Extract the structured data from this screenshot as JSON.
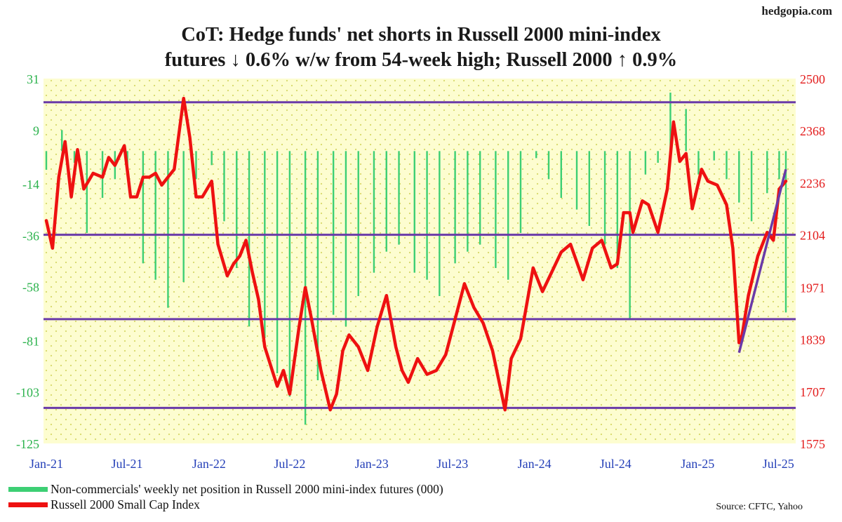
{
  "site": "hedgopia.com",
  "source": "Source: CFTC, Yahoo",
  "colors": {
    "bars": "#3dcf74",
    "line": "#ee1111",
    "trend": "#6a3aa8",
    "left_axis": "#2bb24c",
    "right_axis": "#e31b1b",
    "plot_bg": "#fdfdd0"
  },
  "chart_data": {
    "type": "bar+line",
    "title_lines": [
      "CoT: Hedge funds' net shorts in Russell 2000 mini-index",
      "futures ↓ 0.6% w/w from 54-week high; Russell 2000 ↑ 0.9%"
    ],
    "x_tick_labels": [
      "Jan-21",
      "Jul-21",
      "Jan-22",
      "Jul-22",
      "Jan-23",
      "Jul-23",
      "Jan-24",
      "Jul-24",
      "Jan-25",
      "Jul-25"
    ],
    "y_left": {
      "ticks": [
        31,
        9,
        -14,
        -36,
        -58,
        -81,
        -103,
        -125
      ],
      "range": [
        -125,
        31
      ]
    },
    "y_right": {
      "ticks": [
        2500,
        2368,
        2236,
        2104,
        1971,
        1839,
        1707,
        1575
      ],
      "range": [
        1575,
        2500
      ]
    },
    "horizontal_lines_right_axis": [
      2440,
      2104,
      1890,
      1665
    ],
    "trendline": {
      "from": [
        "2025-04-04",
        1805
      ],
      "to": [
        "2025-07-18",
        2270
      ]
    },
    "series": [
      {
        "name": "Non-commercials' weekly net position in Russell 2000 mini-index futures (000)",
        "type": "bar",
        "axis": "left",
        "x": [
          "2021-01-01",
          "2021-02-05",
          "2021-03-05",
          "2021-04-02",
          "2021-05-07",
          "2021-06-04",
          "2021-07-02",
          "2021-08-06",
          "2021-09-03",
          "2021-10-01",
          "2021-11-05",
          "2021-12-03",
          "2022-01-07",
          "2022-02-04",
          "2022-03-04",
          "2022-04-01",
          "2022-05-06",
          "2022-06-03",
          "2022-07-01",
          "2022-08-05",
          "2022-09-02",
          "2022-10-07",
          "2022-11-04",
          "2022-12-02",
          "2023-01-06",
          "2023-02-03",
          "2023-03-03",
          "2023-04-07",
          "2023-05-05",
          "2023-06-02",
          "2023-07-07",
          "2023-08-04",
          "2023-09-01",
          "2023-10-06",
          "2023-11-03",
          "2023-12-01",
          "2024-01-05",
          "2024-02-02",
          "2024-03-01",
          "2024-04-05",
          "2024-05-03",
          "2024-06-07",
          "2024-07-05",
          "2024-08-02",
          "2024-09-06",
          "2024-10-04",
          "2024-11-01",
          "2024-12-06",
          "2025-01-03",
          "2025-02-07",
          "2025-03-07",
          "2025-04-04",
          "2025-05-02",
          "2025-06-06",
          "2025-07-03",
          "2025-07-18"
        ],
        "values": [
          -8,
          9,
          -5,
          -35,
          -20,
          -12,
          -8,
          -48,
          -55,
          -67,
          -56,
          -12,
          -6,
          -30,
          -50,
          -75,
          -80,
          -95,
          -105,
          -117,
          -98,
          -70,
          -75,
          -62,
          -52,
          -43,
          -40,
          -52,
          -55,
          -62,
          -48,
          -43,
          -40,
          -50,
          -55,
          -35,
          -3,
          -12,
          -20,
          -25,
          -32,
          -40,
          -50,
          -72,
          -10,
          -5,
          25,
          18,
          -10,
          -4,
          -12,
          -22,
          -30,
          -18,
          -12,
          -69
        ]
      },
      {
        "name": "Russell 2000 Small Cap Index",
        "type": "line",
        "axis": "right",
        "x": [
          "2021-01-01",
          "2021-01-15",
          "2021-01-29",
          "2021-02-12",
          "2021-02-26",
          "2021-03-12",
          "2021-03-26",
          "2021-04-16",
          "2021-05-07",
          "2021-05-21",
          "2021-06-04",
          "2021-06-25",
          "2021-07-09",
          "2021-07-23",
          "2021-08-06",
          "2021-08-20",
          "2021-09-03",
          "2021-09-17",
          "2021-10-01",
          "2021-10-15",
          "2021-11-05",
          "2021-11-19",
          "2021-12-03",
          "2021-12-17",
          "2022-01-07",
          "2022-01-21",
          "2022-02-11",
          "2022-02-25",
          "2022-03-11",
          "2022-03-25",
          "2022-04-08",
          "2022-04-22",
          "2022-05-06",
          "2022-05-20",
          "2022-06-03",
          "2022-06-17",
          "2022-07-01",
          "2022-07-22",
          "2022-08-05",
          "2022-08-19",
          "2022-09-09",
          "2022-09-30",
          "2022-10-14",
          "2022-10-28",
          "2022-11-11",
          "2022-12-02",
          "2022-12-23",
          "2023-01-13",
          "2023-02-03",
          "2023-02-24",
          "2023-03-10",
          "2023-03-24",
          "2023-04-14",
          "2023-05-05",
          "2023-05-26",
          "2023-06-16",
          "2023-07-07",
          "2023-07-28",
          "2023-08-18",
          "2023-09-08",
          "2023-09-29",
          "2023-10-27",
          "2023-11-10",
          "2023-12-01",
          "2023-12-29",
          "2024-01-19",
          "2024-02-09",
          "2024-03-01",
          "2024-03-22",
          "2024-04-19",
          "2024-05-10",
          "2024-05-31",
          "2024-06-21",
          "2024-07-05",
          "2024-07-19",
          "2024-08-02",
          "2024-08-09",
          "2024-08-30",
          "2024-09-13",
          "2024-10-04",
          "2024-10-25",
          "2024-11-08",
          "2024-11-22",
          "2024-12-06",
          "2024-12-20",
          "2025-01-10",
          "2025-01-24",
          "2025-02-14",
          "2025-03-07",
          "2025-03-21",
          "2025-04-04",
          "2025-04-11",
          "2025-04-25",
          "2025-05-16",
          "2025-06-06",
          "2025-06-20",
          "2025-07-03",
          "2025-07-18"
        ],
        "values": [
          2140,
          2070,
          2250,
          2340,
          2200,
          2320,
          2220,
          2260,
          2250,
          2300,
          2280,
          2330,
          2200,
          2200,
          2250,
          2250,
          2260,
          2230,
          2250,
          2270,
          2450,
          2350,
          2200,
          2200,
          2240,
          2080,
          2000,
          2030,
          2050,
          2090,
          2010,
          1940,
          1820,
          1770,
          1720,
          1760,
          1700,
          1870,
          1970,
          1890,
          1760,
          1660,
          1700,
          1810,
          1850,
          1820,
          1760,
          1870,
          1950,
          1820,
          1760,
          1730,
          1790,
          1750,
          1760,
          1800,
          1890,
          1980,
          1920,
          1880,
          1810,
          1660,
          1790,
          1840,
          2020,
          1960,
          2010,
          2060,
          2080,
          1990,
          2070,
          2090,
          2020,
          2030,
          2160,
          2160,
          2110,
          2190,
          2180,
          2110,
          2220,
          2390,
          2290,
          2310,
          2170,
          2270,
          2240,
          2230,
          2180,
          2070,
          1830,
          1850,
          1950,
          2050,
          2110,
          2090,
          2220,
          2240
        ]
      }
    ]
  },
  "legend": {
    "bars_label": "Non-commercials' weekly net position in Russell 2000 mini-index futures (000)",
    "line_label": "Russell 2000 Small Cap Index"
  }
}
